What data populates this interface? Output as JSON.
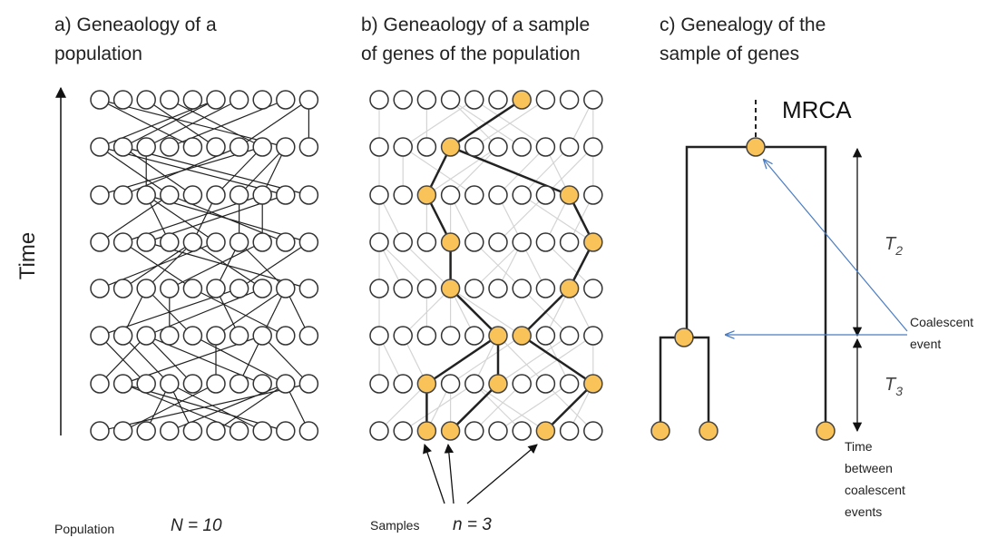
{
  "panels": {
    "a": {
      "title_lines": [
        "a) Geneaology  of a",
        "population"
      ],
      "caption": "Population",
      "size_label": "N = 10"
    },
    "b": {
      "title_lines": [
        "b) Geneaology  of a sample",
        "of genes of the population"
      ],
      "caption": "Samples",
      "size_label": "n = 3"
    },
    "c": {
      "title_lines": [
        "c) Genealogy of the",
        "sample of genes"
      ],
      "root_label": "MRCA",
      "t2": {
        "letter": "T",
        "subscript": "2"
      },
      "t3": {
        "letter": "T",
        "subscript": "3"
      },
      "event_label_lines": [
        "Coalescent",
        "event"
      ],
      "interval_label_lines": [
        "Time",
        "between",
        "coalescent",
        "events"
      ]
    }
  },
  "axis_label": "Time"
}
